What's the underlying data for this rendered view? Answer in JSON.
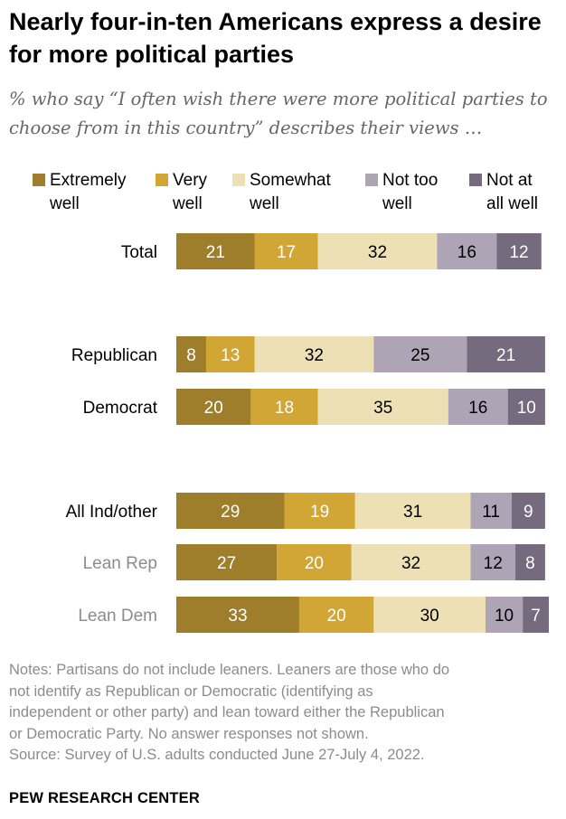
{
  "title": "Nearly four-in-ten Americans express a desire for more political parties",
  "subtitle": "% who say “I often wish there were more political parties to choose from in this country” describes their views …",
  "notes": [
    "Notes: Partisans do not include leaners. Leaners are those who do",
    "not identify as Republican or Democratic (identifying as",
    "independent or other party) and lean toward either the Republican",
    "or Democratic Party. No answer responses not shown."
  ],
  "source": "Source: Survey of U.S. adults conducted June 27-July 4, 2022.",
  "logo": "PEW RESEARCH CENTER",
  "colors": {
    "extremely_well": "#9e7e2a",
    "very_well": "#d1a634",
    "somewhat_well": "#ede0b4",
    "not_too_well": "#ada4b6",
    "not_at_all_well": "#766a7f"
  },
  "chart_data": {
    "type": "bar",
    "orientation": "horizontal",
    "stacked": true,
    "categories": [
      "Total",
      "Republican",
      "Democrat",
      "All Ind/other",
      "Lean Rep",
      "Lean Dem"
    ],
    "category_emphasis": [
      "primary",
      "primary",
      "primary",
      "primary",
      "secondary",
      "secondary"
    ],
    "series": [
      {
        "name": "Extremely well",
        "color": "#9e7e2a",
        "values": [
          21,
          8,
          20,
          29,
          27,
          33
        ]
      },
      {
        "name": "Very well",
        "color": "#d1a634",
        "values": [
          17,
          13,
          18,
          19,
          20,
          20
        ]
      },
      {
        "name": "Somewhat well",
        "color": "#ede0b4",
        "values": [
          32,
          32,
          35,
          31,
          32,
          30
        ]
      },
      {
        "name": "Not too well",
        "color": "#ada4b6",
        "values": [
          16,
          25,
          16,
          11,
          12,
          10
        ]
      },
      {
        "name": "Not at all well",
        "color": "#766a7f",
        "values": [
          12,
          21,
          10,
          9,
          8,
          7
        ]
      }
    ],
    "legend": [
      {
        "line1": "Extremely",
        "line2": "well"
      },
      {
        "line1": "Very",
        "line2": "well"
      },
      {
        "line1": "Somewhat",
        "line2": "well"
      },
      {
        "line1": "Not too",
        "line2": "well"
      },
      {
        "line1": "Not at",
        "line2": "all well"
      }
    ],
    "legend_position": "top",
    "data_labels": true,
    "grid": false,
    "xlim": [
      0,
      100
    ]
  }
}
